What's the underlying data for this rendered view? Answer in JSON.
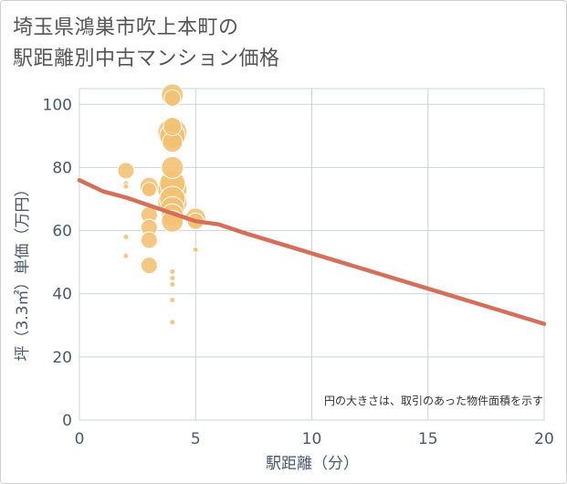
{
  "chart_data": {
    "type": "scatter",
    "title_line1": "埼玉県鴻巣市吹上本町の",
    "title_line2": "駅距離別中古マンション価格",
    "xlabel": "駅距離（分）",
    "ylabel": "坪（3.3㎡）単価（万円）",
    "note": "円の大きさは、取引のあった物件面積を示す",
    "xlim": [
      0,
      20
    ],
    "ylim": [
      0,
      105
    ],
    "xticks": [
      0,
      5,
      10,
      15,
      20
    ],
    "yticks": [
      0,
      20,
      40,
      60,
      80,
      100
    ],
    "xtick_labels": [
      "0",
      "5",
      "10",
      "15",
      "20"
    ],
    "ytick_labels": [
      "0",
      "20",
      "40",
      "60",
      "80",
      "100"
    ],
    "scatter": [
      {
        "x": 2,
        "y": 79,
        "s": 9
      },
      {
        "x": 2,
        "y": 75,
        "s": 3
      },
      {
        "x": 2,
        "y": 74,
        "s": 3
      },
      {
        "x": 2,
        "y": 58,
        "s": 3
      },
      {
        "x": 2,
        "y": 52,
        "s": 3
      },
      {
        "x": 3,
        "y": 74,
        "s": 10
      },
      {
        "x": 3,
        "y": 73,
        "s": 8
      },
      {
        "x": 3,
        "y": 65,
        "s": 9
      },
      {
        "x": 3,
        "y": 61,
        "s": 9
      },
      {
        "x": 3,
        "y": 57,
        "s": 9
      },
      {
        "x": 3,
        "y": 49,
        "s": 9
      },
      {
        "x": 4,
        "y": 103,
        "s": 12
      },
      {
        "x": 4,
        "y": 102,
        "s": 9
      },
      {
        "x": 4,
        "y": 93,
        "s": 10
      },
      {
        "x": 4,
        "y": 91,
        "s": 16
      },
      {
        "x": 4,
        "y": 90,
        "s": 14
      },
      {
        "x": 4,
        "y": 88,
        "s": 11
      },
      {
        "x": 4,
        "y": 80,
        "s": 12
      },
      {
        "x": 4,
        "y": 75,
        "s": 14
      },
      {
        "x": 4,
        "y": 73,
        "s": 16
      },
      {
        "x": 4,
        "y": 70,
        "s": 14
      },
      {
        "x": 4,
        "y": 69,
        "s": 16
      },
      {
        "x": 4,
        "y": 67,
        "s": 13
      },
      {
        "x": 4,
        "y": 65,
        "s": 12
      },
      {
        "x": 4,
        "y": 63,
        "s": 12
      },
      {
        "x": 4,
        "y": 47,
        "s": 3
      },
      {
        "x": 4,
        "y": 45,
        "s": 3
      },
      {
        "x": 4,
        "y": 43,
        "s": 3
      },
      {
        "x": 4,
        "y": 38,
        "s": 3
      },
      {
        "x": 4,
        "y": 31,
        "s": 3
      },
      {
        "x": 5,
        "y": 64,
        "s": 11
      },
      {
        "x": 5,
        "y": 63,
        "s": 9
      },
      {
        "x": 5,
        "y": 54,
        "s": 3
      }
    ],
    "trend": {
      "x": [
        0,
        1,
        2,
        3,
        4,
        5,
        6,
        7,
        20
      ],
      "y": [
        76,
        72.5,
        70.5,
        68,
        65.5,
        63,
        62,
        59.5,
        30.5
      ]
    },
    "colors": {
      "bubble": "#f2c072",
      "bubble_edge": "#ffffff",
      "trend": "#d4705a",
      "grid": "#c9d3dd",
      "plot_bg": "#ffffff"
    }
  }
}
